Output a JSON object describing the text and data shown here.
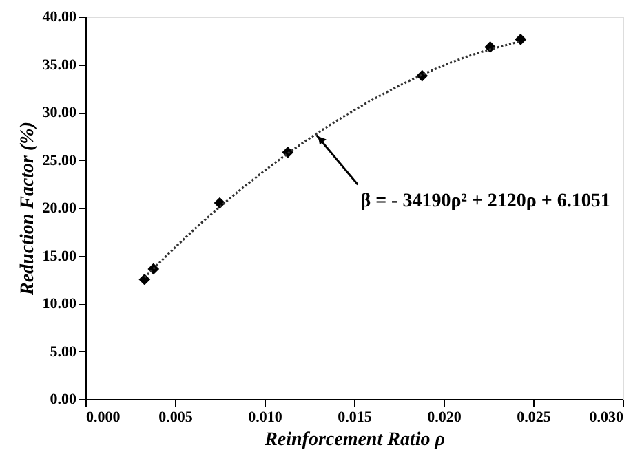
{
  "chart_data": {
    "type": "scatter",
    "xlabel": "Reinforcement Ratio ρ",
    "ylabel": "Reduction Factor (%)",
    "series": [
      {
        "type": "scatter",
        "marker": "diamond",
        "color": "#000000",
        "x": [
          0.0033,
          0.0038,
          0.0075,
          0.0113,
          0.0188,
          0.0226,
          0.0243
        ],
        "values": [
          12.5,
          13.6,
          20.5,
          25.8,
          33.8,
          36.8,
          37.6
        ]
      },
      {
        "type": "line",
        "marker": "none",
        "line_style": "dotted",
        "color": "#333333",
        "x": [
          0.0033,
          0.006,
          0.009,
          0.012,
          0.015,
          0.018,
          0.021,
          0.0243
        ],
        "values": [
          12.7,
          17.6,
          22.4,
          26.6,
          30.2,
          33.2,
          35.6,
          37.4
        ]
      }
    ],
    "annotations": [
      {
        "text": "β = - 34190ρ² + 2120ρ + 6.1051",
        "x": 0.0129,
        "y": 27.6
      }
    ],
    "xlim": [
      0,
      0.03
    ],
    "xticks": [
      {
        "value": 0,
        "label": "0.000"
      },
      {
        "value": 0.005,
        "label": "0.005"
      },
      {
        "value": 0.01,
        "label": "0.010"
      },
      {
        "value": 0.015,
        "label": "0.015"
      },
      {
        "value": 0.02,
        "label": "0.020"
      },
      {
        "value": 0.025,
        "label": "0.025"
      },
      {
        "value": 0.03,
        "label": "0.030"
      }
    ],
    "ylim": [
      0,
      40
    ],
    "yticks": [
      {
        "value": 0,
        "label": "0.00"
      },
      {
        "value": 5,
        "label": "5.00"
      },
      {
        "value": 10,
        "label": "10.00"
      },
      {
        "value": 15,
        "label": "15.00"
      },
      {
        "value": 20,
        "label": "20.00"
      },
      {
        "value": 25,
        "label": "25.00"
      },
      {
        "value": 30,
        "label": "30.00"
      },
      {
        "value": 35,
        "label": "35.00"
      },
      {
        "value": 40,
        "label": "40.00"
      }
    ],
    "grid": false
  }
}
